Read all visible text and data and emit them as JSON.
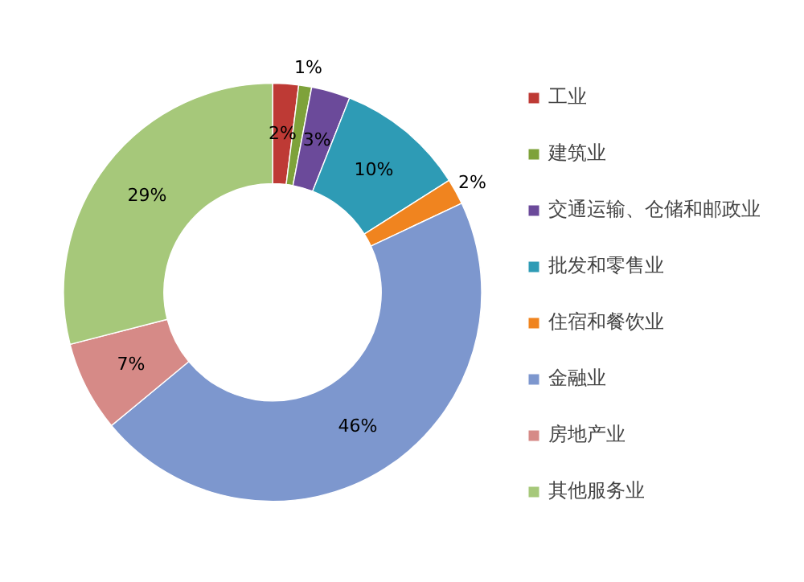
{
  "chart_data": {
    "type": "donut",
    "categories": [
      "工业",
      "建筑业",
      "交通运输、仓储和邮政业",
      "批发和零售业",
      "住宿和餐饮业",
      "金融业",
      "房地产业",
      "其他服务业"
    ],
    "values": [
      2,
      1,
      3,
      10,
      2,
      46,
      7,
      29
    ],
    "colors": [
      "#be3a35",
      "#7ea23a",
      "#6b4a9a",
      "#2e9bb5",
      "#f0841f",
      "#7d97ce",
      "#d68a87",
      "#a6c87a"
    ],
    "value_labels": [
      "2%",
      "1%",
      "3%",
      "10%",
      "2%",
      "46%",
      "7%",
      "29%"
    ],
    "legend": "right"
  }
}
